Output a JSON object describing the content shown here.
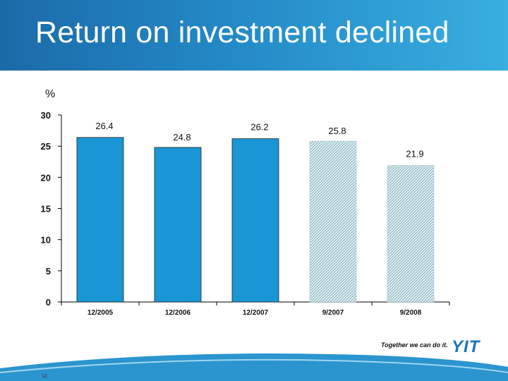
{
  "slide": {
    "title": "Return on investment declined",
    "tagline": "Together we can do it.",
    "logo": "YIT",
    "page_number": "12"
  },
  "colors": {
    "header_start": "#1b6aa8",
    "header_end": "#38aee0",
    "bar_solid": "#1a96d4",
    "bar_hatch_bg": "#e8f4f7",
    "bar_hatch_line": "#7aaeb6",
    "logo": "#1b74b8"
  },
  "chart_data": {
    "type": "bar",
    "ylabel": "%",
    "categories": [
      "12/2005",
      "12/2006",
      "12/2007",
      "9/2007",
      "9/2008"
    ],
    "values": [
      26.4,
      24.8,
      26.2,
      25.8,
      21.9
    ],
    "data_labels": [
      "26.4",
      "24.8",
      "26.2",
      "25.8",
      "21.9"
    ],
    "bar_styles": [
      "solid",
      "solid",
      "solid",
      "hatched",
      "hatched"
    ],
    "ylim": [
      0,
      30
    ],
    "yticks": [
      0,
      5,
      10,
      15,
      20,
      25,
      30
    ],
    "grid": false
  }
}
